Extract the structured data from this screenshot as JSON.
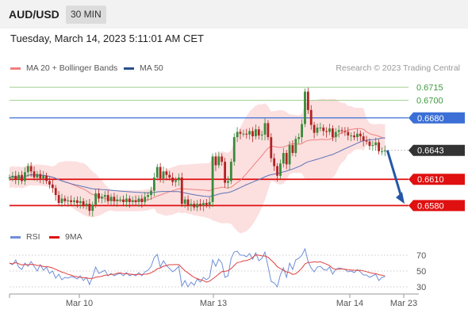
{
  "header": {
    "pair": "AUD/USD",
    "timeframe": "30 MIN",
    "datetime": "Tuesday, March 14, 2023 5:11:01 AM CET"
  },
  "legend": {
    "ma20": "MA 20 + Bollinger Bands",
    "ma50": "MA 50",
    "credit": "Research © 2023 Trading Central"
  },
  "rsi_legend": {
    "rsi": "RSI",
    "ma9": "9MA"
  },
  "colors": {
    "bollinger_fill": "#fcd9d9",
    "ma20": "#f08080",
    "ma50": "#5b74b8",
    "bull": "#3a8a3a",
    "bear": "#b22222",
    "resistance": "#9fcf8f",
    "pivot": "#3b6fd6",
    "support": "#e01010",
    "current": "#333333",
    "arrow": "#2557a7",
    "rsi": "#6f8fd6",
    "rsi_ma": "#e04040"
  },
  "chart_data": [
    {
      "type": "candlestick",
      "x_ticks": [
        "Mar 10",
        "Mar 13",
        "Mar 14",
        "Mar 23"
      ],
      "ylim": [
        0.6565,
        0.6725
      ],
      "levels": [
        {
          "value": 0.6715,
          "label": "0.6715",
          "kind": "resistance"
        },
        {
          "value": 0.67,
          "label": "0.6700",
          "kind": "resistance"
        },
        {
          "value": 0.668,
          "label": "0.6680",
          "kind": "pivot"
        },
        {
          "value": 0.6643,
          "label": "0.6643",
          "kind": "current"
        },
        {
          "value": 0.661,
          "label": "0.6610",
          "kind": "support"
        },
        {
          "value": 0.658,
          "label": "0.6580",
          "kind": "support"
        }
      ],
      "close": [
        0.6612,
        0.6614,
        0.661,
        0.6615,
        0.6608,
        0.6618,
        0.6625,
        0.6619,
        0.6612,
        0.6616,
        0.6611,
        0.6614,
        0.6608,
        0.6604,
        0.66,
        0.6592,
        0.6583,
        0.6588,
        0.6585,
        0.6586,
        0.6584,
        0.6586,
        0.6583,
        0.6585,
        0.658,
        0.6582,
        0.6574,
        0.6581,
        0.6594,
        0.6588,
        0.659,
        0.6592,
        0.6585,
        0.659,
        0.6585,
        0.6587,
        0.6587,
        0.6584,
        0.6588,
        0.6584,
        0.6586,
        0.6584,
        0.6588,
        0.6584,
        0.659,
        0.6592,
        0.6597,
        0.6612,
        0.6624,
        0.6611,
        0.6619,
        0.6615,
        0.6612,
        0.6607,
        0.6609,
        0.6612,
        0.6582,
        0.6587,
        0.658,
        0.6582,
        0.6578,
        0.6582,
        0.658,
        0.6583,
        0.6581,
        0.6584,
        0.6636,
        0.6626,
        0.6636,
        0.663,
        0.6606,
        0.6608,
        0.663,
        0.6658,
        0.6664,
        0.6662,
        0.6662,
        0.6661,
        0.6665,
        0.6659,
        0.6667,
        0.666,
        0.6661,
        0.6674,
        0.6658,
        0.6634,
        0.6625,
        0.6614,
        0.6628,
        0.664,
        0.6627,
        0.6649,
        0.664,
        0.6656,
        0.6658,
        0.6673,
        0.671,
        0.6689,
        0.6672,
        0.6663,
        0.6669,
        0.6669,
        0.6665,
        0.6664,
        0.6668,
        0.6658,
        0.6664,
        0.6666,
        0.6665,
        0.6664,
        0.666,
        0.666,
        0.6658,
        0.6662,
        0.6659,
        0.6654,
        0.6653,
        0.6648,
        0.6649,
        0.6652,
        0.6642,
        0.6642,
        0.6643
      ]
    },
    {
      "type": "line",
      "name": "RSI",
      "yticks": [
        70,
        50,
        30
      ],
      "ylim": [
        20,
        80
      ],
      "values": [
        60,
        58,
        64,
        55,
        52,
        60,
        56,
        62,
        56,
        50,
        58,
        51,
        55,
        47,
        50,
        41,
        46,
        39,
        42,
        41,
        43,
        42,
        40,
        44,
        38,
        42,
        33,
        43,
        55,
        47,
        49,
        51,
        44,
        47,
        44,
        46,
        47,
        44,
        48,
        44,
        46,
        44,
        48,
        44,
        49,
        51,
        56,
        67,
        71,
        55,
        63,
        57,
        53,
        49,
        52,
        56,
        31,
        38,
        30,
        36,
        32,
        40,
        36,
        42,
        39,
        42,
        64,
        56,
        65,
        60,
        42,
        44,
        66,
        74,
        75,
        70,
        70,
        68,
        72,
        65,
        73,
        63,
        66,
        74,
        56,
        37,
        35,
        30,
        45,
        54,
        42,
        60,
        52,
        64,
        66,
        70,
        78,
        62,
        54,
        49,
        55,
        56,
        52,
        51,
        55,
        46,
        52,
        54,
        53,
        52,
        49,
        50,
        48,
        52,
        49,
        45,
        45,
        42,
        44,
        46,
        38,
        42,
        43
      ]
    }
  ]
}
